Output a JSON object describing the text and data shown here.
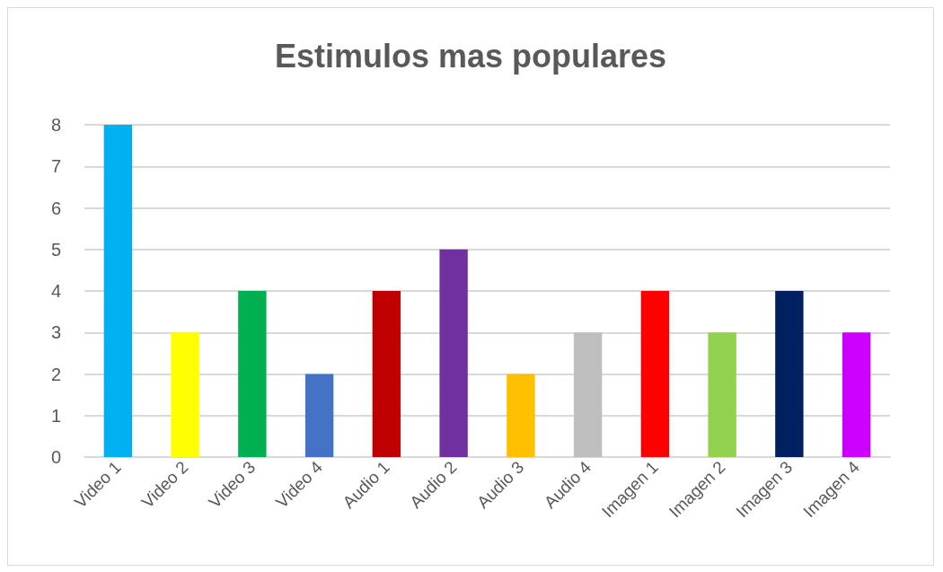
{
  "chart_data": {
    "type": "bar",
    "title": "Estimulos mas populares",
    "categories": [
      "Video 1",
      "Video 2",
      "Video 3",
      "Video 4",
      "Audio 1",
      "Audio 2",
      "Audio 3",
      "Audio 4",
      "Imagen 1",
      "Imagen 2",
      "Imagen 3",
      "Imagen 4"
    ],
    "values": [
      8,
      3,
      4,
      2,
      4,
      5,
      2,
      3,
      4,
      3,
      4,
      3
    ],
    "colors": [
      "#00b0f0",
      "#ffff00",
      "#00b050",
      "#4472c4",
      "#c00000",
      "#7030a0",
      "#ffc000",
      "#bfbfbf",
      "#ff0000",
      "#92d050",
      "#002060",
      "#cc00ff"
    ],
    "ylim": [
      0,
      8
    ],
    "yticks": [
      0,
      1,
      2,
      3,
      4,
      5,
      6,
      7,
      8
    ],
    "grid": "y"
  }
}
